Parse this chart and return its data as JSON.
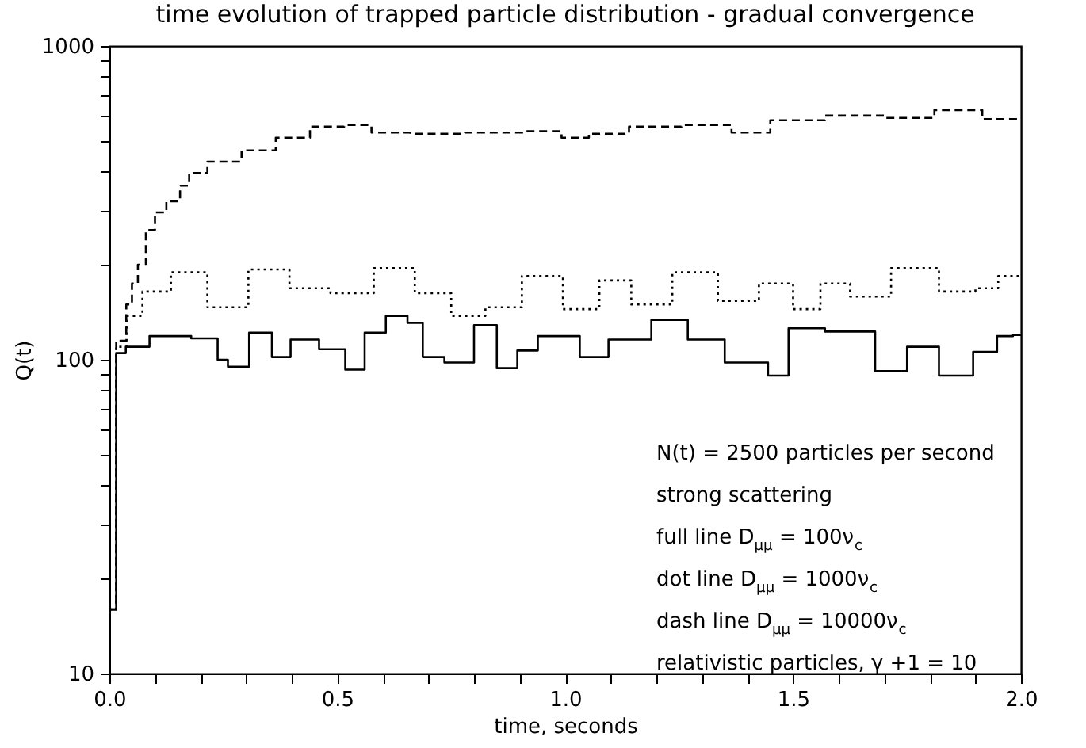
{
  "chart_data": {
    "type": "step",
    "title": "time evolution of trapped particle distribution - gradual convergence",
    "xlabel": "time, seconds",
    "ylabel": "Q(t)",
    "log": "y",
    "grid": false,
    "marker": "none",
    "xlim": [
      0,
      2
    ],
    "ylim": [
      10,
      1000
    ],
    "xticks": [
      {
        "value": 0,
        "label": "0.0"
      },
      {
        "value": 0.1,
        "label": null
      },
      {
        "value": 0.2,
        "label": null
      },
      {
        "value": 0.3,
        "label": null
      },
      {
        "value": 0.4,
        "label": null
      },
      {
        "value": 0.5,
        "label": "0.5"
      },
      {
        "value": 0.6,
        "label": null
      },
      {
        "value": 0.7,
        "label": null
      },
      {
        "value": 0.8,
        "label": null
      },
      {
        "value": 0.9,
        "label": null
      },
      {
        "value": 1,
        "label": "1.0"
      },
      {
        "value": 1.1,
        "label": null
      },
      {
        "value": 1.2,
        "label": null
      },
      {
        "value": 1.3,
        "label": null
      },
      {
        "value": 1.4,
        "label": null
      },
      {
        "value": 1.5,
        "label": "1.5"
      },
      {
        "value": 1.6,
        "label": null
      },
      {
        "value": 1.7,
        "label": null
      },
      {
        "value": 1.8,
        "label": null
      },
      {
        "value": 1.9,
        "label": null
      },
      {
        "value": 2,
        "label": "2.0"
      }
    ],
    "yticks": [
      10,
      {
        "value": 20,
        "label": null
      },
      {
        "value": 30,
        "label": null
      },
      {
        "value": 40,
        "label": null
      },
      {
        "value": 50,
        "label": null
      },
      {
        "value": 60,
        "label": null
      },
      {
        "value": 70,
        "label": null
      },
      {
        "value": 80,
        "label": null
      },
      {
        "value": 90,
        "label": null
      },
      100,
      {
        "value": 200,
        "label": null
      },
      {
        "value": 300,
        "label": null
      },
      {
        "value": 400,
        "label": null
      },
      {
        "value": 500,
        "label": null
      },
      {
        "value": 600,
        "label": null
      },
      {
        "value": 700,
        "label": null
      },
      {
        "value": 800,
        "label": null
      },
      {
        "value": 900,
        "label": null
      },
      1000
    ],
    "series": [
      {
        "color": "#000000",
        "line_style": "solid",
        "x": [
          0,
          0.03,
          0.042,
          0.134,
          0.225,
          0.25,
          0.27,
          0.343,
          0.37,
          0.425,
          0.495,
          0.54,
          0.58,
          0.633,
          0.675,
          0.7,
          0.77,
          0.83,
          0.87,
          0.92,
          0.96,
          1.004,
          1.06,
          1.13,
          1.248,
          1.29,
          1.41,
          1.48,
          1.5,
          1.64,
          1.72,
          1.78,
          1.86,
          1.93,
          1.965,
          2.0
        ],
        "values": [
          16,
          105,
          110,
          119,
          117,
          100,
          95,
          122,
          102,
          116,
          108,
          93,
          122,
          138,
          131,
          102,
          98,
          129,
          94,
          107,
          119,
          119,
          102,
          116,
          134,
          116,
          98,
          89,
          126,
          123,
          92,
          110,
          89,
          106,
          119,
          120
        ]
      },
      {
        "color": "#000000",
        "line_style": "dotted",
        "x": [
          0,
          0.03,
          0.045,
          0.1,
          0.17,
          0.26,
          0.35,
          0.44,
          0.53,
          0.63,
          0.71,
          0.79,
          0.86,
          0.95,
          1.04,
          1.11,
          1.18,
          1.29,
          1.38,
          1.47,
          1.53,
          1.59,
          1.66,
          1.77,
          1.87,
          1.93,
          1.97,
          2.0
        ],
        "values": [
          16,
          110,
          138,
          165,
          190,
          147,
          194,
          169,
          163,
          196,
          163,
          138,
          147,
          185,
          145,
          179,
          150,
          190,
          154,
          175,
          145,
          175,
          159,
          196,
          165,
          169,
          185,
          185
        ]
      },
      {
        "color": "#000000",
        "line_style": "dashed",
        "x": [
          0,
          0.03,
          0.044,
          0.055,
          0.07,
          0.09,
          0.11,
          0.14,
          0.17,
          0.18,
          0.25,
          0.33,
          0.4,
          0.48,
          0.55,
          0.6,
          0.72,
          0.84,
          0.98,
          1.004,
          1.1,
          1.18,
          1.33,
          1.4,
          1.5,
          1.64,
          1.76,
          1.86,
          1.97,
          2.0
        ],
        "values": [
          16,
          115,
          150,
          175,
          201,
          259,
          295,
          320,
          359,
          394,
          428,
          465,
          510,
          553,
          560,
          530,
          525,
          530,
          535,
          510,
          525,
          553,
          560,
          530,
          580,
          600,
          590,
          625,
          585,
          585
        ]
      }
    ],
    "annotations": [
      "N(t) = 2500 particles per second",
      "strong scattering",
      "full line D$_{μμ}$ = 100ν$_{c}$",
      "dot line D$_{μμ}$ = 1000ν$_{c}$",
      "dash line D$_{μμ}$ = 10000ν$_{c}$",
      "relativistic particles, γ +1 = 10"
    ]
  }
}
